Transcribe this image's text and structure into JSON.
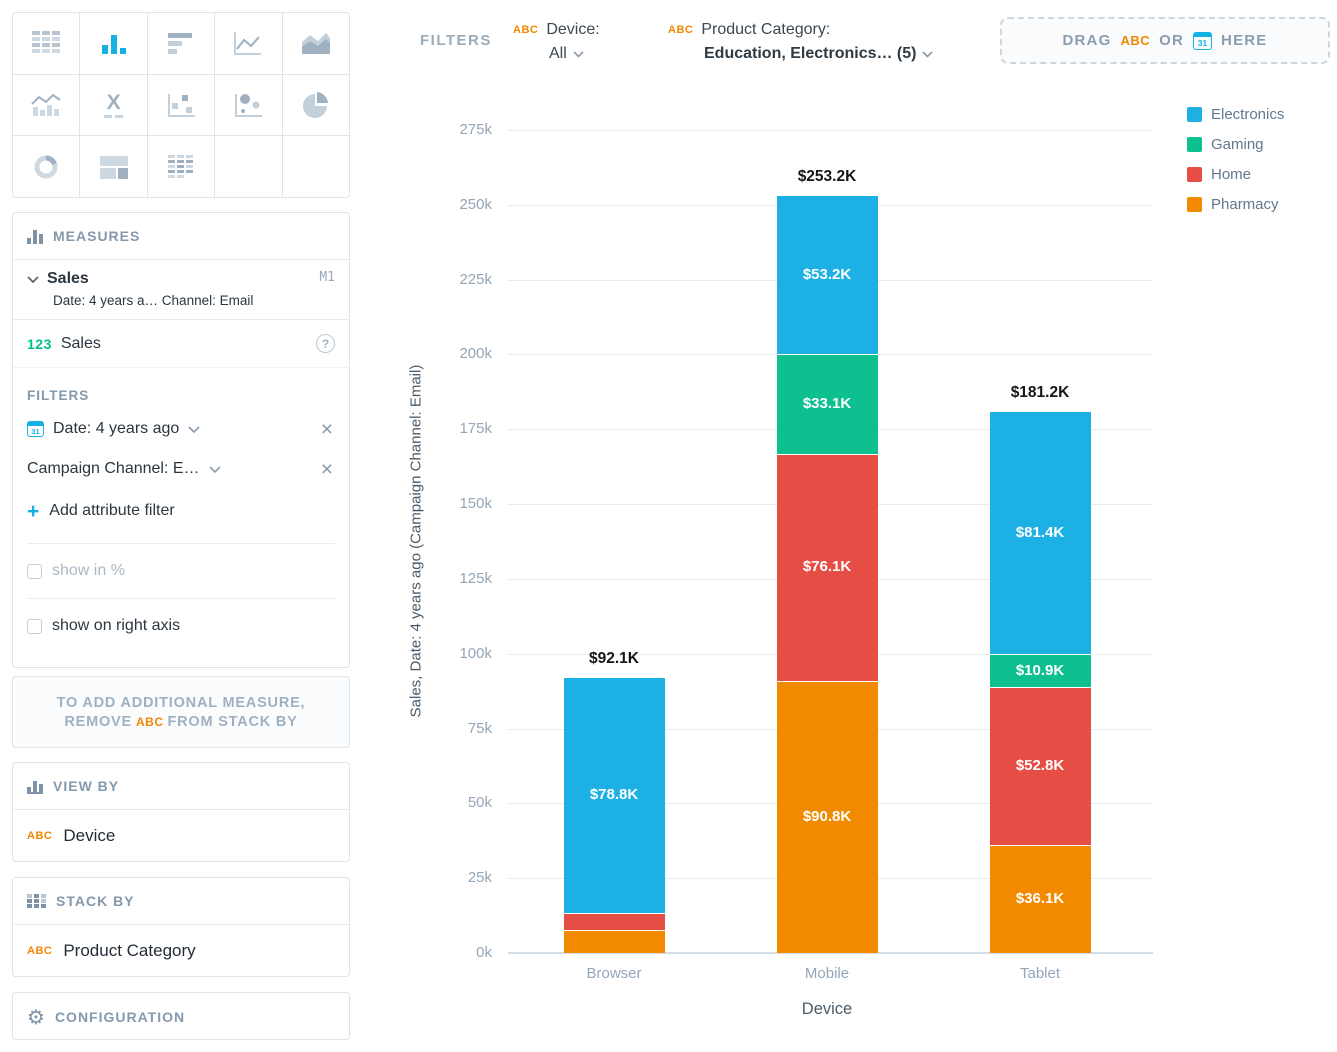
{
  "sidebar": {
    "chart_picker": {
      "types": [
        "table",
        "column-chart",
        "bar-chart",
        "line-chart",
        "area-chart",
        "combo-chart",
        "headline",
        "scatter-plot",
        "bubble-chart",
        "pie-chart",
        "donut-chart",
        "treemap",
        "heatmap"
      ],
      "selected": "column-chart"
    },
    "measures": {
      "title": "MEASURES",
      "item": {
        "name": "Sales",
        "badge": "M1",
        "subtitle": "Date: 4 years a… Channel: Email"
      },
      "measure_row": {
        "prefix": "123",
        "label": "Sales",
        "help": "?"
      },
      "filters_title": "FILTERS",
      "date_filter": "Date: 4 years ago",
      "attribute_filter": "Campaign Channel: E…",
      "remove_icon": "×",
      "add_filter_plus": "+",
      "add_filter": "Add attribute filter",
      "show_in_percent": "show in %",
      "show_right_axis": "show on right axis"
    },
    "note": {
      "line1": "TO ADD ADDITIONAL MEASURE,",
      "line2_pre": "REMOVE",
      "line2_tag": "ABC",
      "line2_post": "FROM STACK BY"
    },
    "view_by": {
      "title": "VIEW BY",
      "tag": "ABC",
      "value": "Device"
    },
    "stack_by": {
      "title": "STACK BY",
      "tag": "ABC",
      "value": "Product Category"
    },
    "configuration": {
      "title": "CONFIGURATION",
      "gear": "⚙"
    }
  },
  "filter_bar": {
    "label": "FILTERS",
    "device_filter": {
      "tag": "ABC",
      "name": "Device:",
      "value": "All"
    },
    "category_filter": {
      "tag": "ABC",
      "name": "Product Category:",
      "value": "Education, Electronics… (5)"
    },
    "drop_zone": {
      "pre": "DRAG",
      "tag": "ABC",
      "mid": "OR",
      "post": "HERE",
      "calendar_text": "31"
    }
  },
  "calendar_icon_text": "31",
  "colors": {
    "electronics": "#1cb0e5",
    "gaming": "#0ec08f",
    "home": "#e54d45",
    "pharmacy": "#f28a00",
    "accent_blue": "#14b2e2",
    "accent_orange": "#f18600",
    "accent_green": "#00c18d"
  },
  "chart_data": {
    "type": "bar",
    "subtype": "stacked-column",
    "categories": [
      "Browser",
      "Mobile",
      "Tablet"
    ],
    "series": [
      {
        "name": "Pharmacy",
        "color": "#f28a00",
        "values": [
          7.6,
          90.8,
          36.1
        ],
        "labels": [
          "",
          "$90.8K",
          "$36.1K"
        ]
      },
      {
        "name": "Home",
        "color": "#e54d45",
        "values": [
          5.7,
          76.1,
          52.8
        ],
        "labels": [
          "",
          "$76.1K",
          "$52.8K"
        ]
      },
      {
        "name": "Gaming",
        "color": "#0ec08f",
        "values": [
          0,
          33.1,
          10.9
        ],
        "labels": [
          "",
          "$33.1K",
          "$10.9K"
        ]
      },
      {
        "name": "Electronics",
        "color": "#1cb0e5",
        "values": [
          78.8,
          53.2,
          81.4
        ],
        "labels": [
          "$78.8K",
          "$53.2K",
          "$81.4K"
        ]
      }
    ],
    "totals": [
      "$92.1K",
      "$253.2K",
      "$181.2K"
    ],
    "y_ticks": [
      "0k",
      "25k",
      "50k",
      "75k",
      "100k",
      "125k",
      "150k",
      "175k",
      "200k",
      "225k",
      "250k",
      "275k"
    ],
    "y_tick_step": 25,
    "y_max": 275,
    "ylim": [
      0,
      275
    ],
    "grid": true,
    "ylabel": "Sales, Date: 4 years ago (Campaign Channel: Email)",
    "xlabel": "Device",
    "legend_position": "top-right",
    "legend": [
      {
        "label": "Electronics",
        "color": "#1cb0e5"
      },
      {
        "label": "Gaming",
        "color": "#0ec08f"
      },
      {
        "label": "Home",
        "color": "#e54d45"
      },
      {
        "label": "Pharmacy",
        "color": "#f28a00"
      }
    ]
  }
}
